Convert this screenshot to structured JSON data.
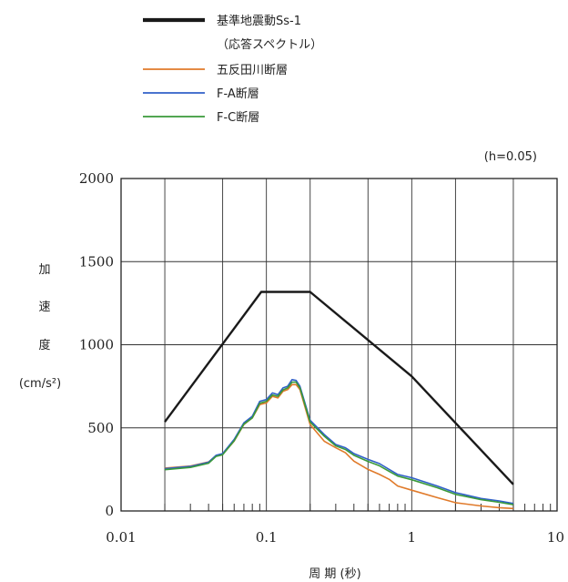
{
  "chart_data": {
    "type": "line",
    "legend": {
      "placement": "top",
      "entries": [
        {
          "label": "基準地震動Ss-1",
          "color": "#1a1a1a"
        },
        {
          "label": "（応答スペクトル）",
          "color": null
        },
        {
          "label": "五反田川断層",
          "color": "#e07a2a"
        },
        {
          "label": "F-A断層",
          "color": "#3060c8"
        },
        {
          "label": "F-C断層",
          "color": "#3a9a3a"
        }
      ]
    },
    "annotation": "(h=0.05)",
    "ylabel_lines": [
      "加",
      "速",
      "度",
      "(cm/s²)"
    ],
    "xlabel": "周 期 (秒)",
    "x_scale": "log",
    "xlim": [
      0.01,
      10
    ],
    "ylim": [
      0,
      2000
    ],
    "x_ticks": [
      0.01,
      0.1,
      1,
      10
    ],
    "x_tick_labels": [
      "0.01",
      "0.1",
      "1",
      "10"
    ],
    "y_ticks": [
      0,
      500,
      1000,
      1500,
      2000
    ],
    "y_tick_labels": [
      "0",
      "500",
      "1000",
      "1500",
      "2000"
    ],
    "grid": true,
    "series": [
      {
        "name": "基準地震動Ss-1",
        "color": "#1a1a1a",
        "x": [
          0.02,
          0.0922,
          0.2,
          1.0,
          5.0
        ],
        "y": [
          536,
          1318,
          1318,
          810,
          160
        ]
      },
      {
        "name": "五反田川断層",
        "color": "#e07a2a",
        "x": [
          0.02,
          0.03,
          0.04,
          0.045,
          0.05,
          0.06,
          0.07,
          0.08,
          0.09,
          0.1,
          0.11,
          0.12,
          0.13,
          0.14,
          0.15,
          0.16,
          0.17,
          0.2,
          0.25,
          0.3,
          0.35,
          0.4,
          0.5,
          0.6,
          0.7,
          0.8,
          1.0,
          1.5,
          2.0,
          3.0,
          4.0,
          5.0
        ],
        "y": [
          258,
          270,
          295,
          330,
          340,
          420,
          520,
          560,
          640,
          650,
          690,
          680,
          720,
          730,
          760,
          760,
          730,
          520,
          420,
          380,
          350,
          300,
          250,
          220,
          190,
          150,
          125,
          80,
          50,
          30,
          20,
          15
        ]
      },
      {
        "name": "F-A断層",
        "color": "#3060c8",
        "x": [
          0.02,
          0.03,
          0.04,
          0.045,
          0.05,
          0.06,
          0.07,
          0.08,
          0.09,
          0.1,
          0.11,
          0.12,
          0.13,
          0.14,
          0.15,
          0.16,
          0.17,
          0.2,
          0.25,
          0.3,
          0.35,
          0.4,
          0.5,
          0.6,
          0.7,
          0.8,
          1.0,
          1.5,
          2.0,
          3.0,
          4.0,
          5.0
        ],
        "y": [
          255,
          268,
          293,
          335,
          345,
          430,
          530,
          570,
          660,
          670,
          710,
          700,
          740,
          750,
          790,
          785,
          750,
          545,
          460,
          400,
          380,
          345,
          310,
          285,
          250,
          220,
          200,
          150,
          110,
          75,
          60,
          45
        ]
      },
      {
        "name": "F-C断層",
        "color": "#3a9a3a",
        "x": [
          0.02,
          0.03,
          0.04,
          0.045,
          0.05,
          0.06,
          0.07,
          0.08,
          0.09,
          0.1,
          0.11,
          0.12,
          0.13,
          0.14,
          0.15,
          0.16,
          0.17,
          0.2,
          0.25,
          0.3,
          0.35,
          0.4,
          0.5,
          0.6,
          0.7,
          0.8,
          1.0,
          1.5,
          2.0,
          3.0,
          4.0,
          5.0
        ],
        "y": [
          248,
          262,
          287,
          328,
          338,
          422,
          522,
          560,
          648,
          660,
          698,
          690,
          728,
          740,
          775,
          775,
          740,
          535,
          450,
          392,
          370,
          335,
          298,
          272,
          238,
          210,
          188,
          140,
          100,
          68,
          52,
          38
        ]
      }
    ]
  }
}
